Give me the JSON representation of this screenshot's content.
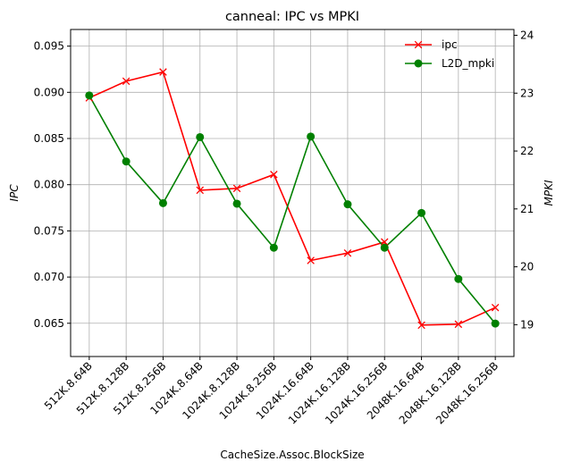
{
  "chart_data": {
    "type": "line",
    "title": "canneal: IPC vs MPKI",
    "xlabel": "CacheSize.Assoc.BlockSize",
    "ylabel_left": "IPC",
    "ylabel_right": "MPKI",
    "categories": [
      "512K.8.64B",
      "512K.8.128B",
      "512K.8.256B",
      "1024K.8.64B",
      "1024K.8.128B",
      "1024K.8.256B",
      "1024K.16.64B",
      "1024K.16.128B",
      "1024K.16.256B",
      "2048K.16.64B",
      "2048K.16.128B",
      "2048K.16.256B"
    ],
    "ylim_left": [
      0.0614,
      0.0968
    ],
    "ylim_right": [
      18.45,
      24.1
    ],
    "yticks_left": [
      "0.065",
      "0.070",
      "0.075",
      "0.080",
      "0.085",
      "0.090",
      "0.095"
    ],
    "yticks_right": [
      "19",
      "20",
      "21",
      "22",
      "23",
      "24"
    ],
    "grid": true,
    "legend_position": "top-right",
    "series": [
      {
        "name": "ipc",
        "axis": "left",
        "color": "#ff0000",
        "marker": "x",
        "values": [
          0.0894,
          0.0912,
          0.0922,
          0.0794,
          0.0796,
          0.0811,
          0.0718,
          0.0726,
          0.0738,
          0.0648,
          0.0649,
          0.0667
        ]
      },
      {
        "name": "L2D_mpki",
        "axis": "right",
        "color": "#008000",
        "marker": "circle",
        "values": [
          22.96,
          21.82,
          21.1,
          22.24,
          21.09,
          20.33,
          22.25,
          21.08,
          20.33,
          20.93,
          19.79,
          19.02
        ]
      }
    ]
  }
}
